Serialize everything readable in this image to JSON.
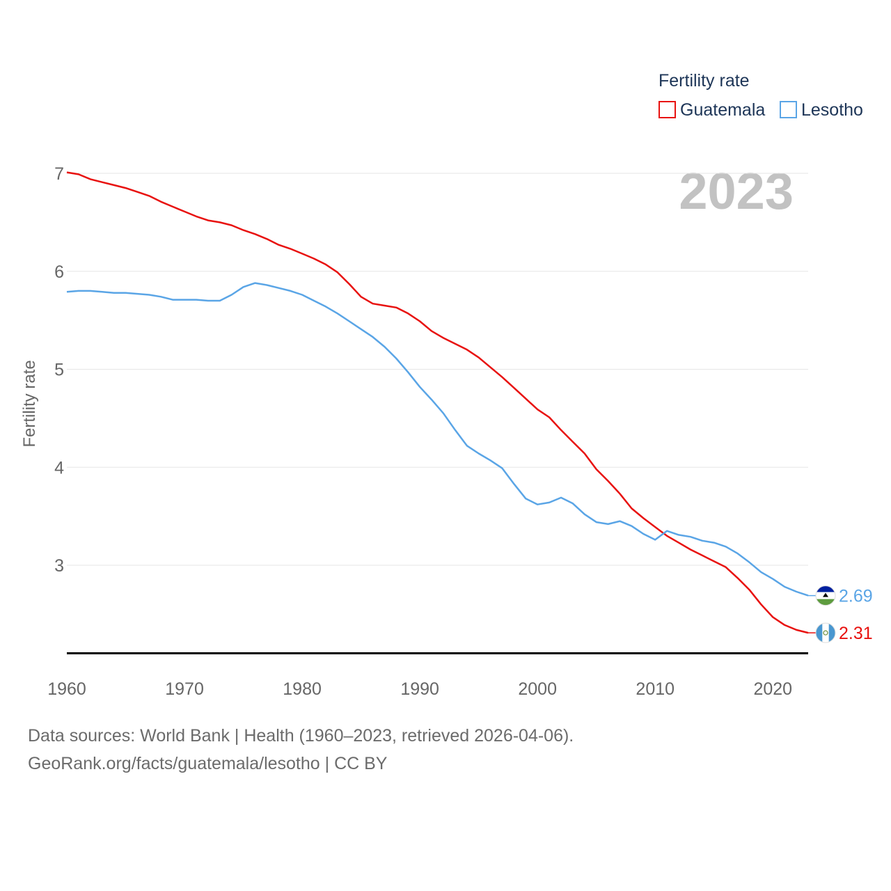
{
  "chart_data": {
    "type": "line",
    "title": "",
    "xlabel": "",
    "ylabel": "Fertility rate",
    "xlim": [
      1960,
      2023
    ],
    "ylim": [
      2.1,
      7.2
    ],
    "year_label": "2023",
    "x_ticks": [
      1960,
      1970,
      1980,
      1990,
      2000,
      2010,
      2020
    ],
    "y_ticks": [
      3,
      4,
      5,
      6,
      7
    ],
    "legend": {
      "title": "Fertility rate",
      "position": "top-right"
    },
    "x": [
      1960,
      1961,
      1962,
      1963,
      1964,
      1965,
      1966,
      1967,
      1968,
      1969,
      1970,
      1971,
      1972,
      1973,
      1974,
      1975,
      1976,
      1977,
      1978,
      1979,
      1980,
      1981,
      1982,
      1983,
      1984,
      1985,
      1986,
      1987,
      1988,
      1989,
      1990,
      1991,
      1992,
      1993,
      1994,
      1995,
      1996,
      1997,
      1998,
      1999,
      2000,
      2001,
      2002,
      2003,
      2004,
      2005,
      2006,
      2007,
      2008,
      2009,
      2010,
      2011,
      2012,
      2013,
      2014,
      2015,
      2016,
      2017,
      2018,
      2019,
      2020,
      2021,
      2022,
      2023
    ],
    "series": [
      {
        "name": "Guatemala",
        "color": "#e8110f",
        "end_label": "2.31",
        "flag": "guatemala-flag",
        "values": [
          7.01,
          6.99,
          6.94,
          6.91,
          6.88,
          6.85,
          6.81,
          6.77,
          6.71,
          6.66,
          6.61,
          6.56,
          6.52,
          6.5,
          6.47,
          6.42,
          6.38,
          6.33,
          6.27,
          6.23,
          6.18,
          6.13,
          6.07,
          5.99,
          5.87,
          5.74,
          5.67,
          5.65,
          5.63,
          5.57,
          5.49,
          5.39,
          5.32,
          5.26,
          5.2,
          5.12,
          5.02,
          4.92,
          4.81,
          4.7,
          4.59,
          4.51,
          4.38,
          4.26,
          4.14,
          3.98,
          3.86,
          3.73,
          3.58,
          3.48,
          3.39,
          3.3,
          3.23,
          3.16,
          3.1,
          3.04,
          2.98,
          2.87,
          2.75,
          2.6,
          2.47,
          2.39,
          2.34,
          2.31
        ]
      },
      {
        "name": "Lesotho",
        "color": "#5aa5e6",
        "end_label": "2.69",
        "flag": "lesotho-flag",
        "values": [
          5.79,
          5.8,
          5.8,
          5.79,
          5.78,
          5.78,
          5.77,
          5.76,
          5.74,
          5.71,
          5.71,
          5.71,
          5.7,
          5.7,
          5.76,
          5.84,
          5.88,
          5.86,
          5.83,
          5.8,
          5.76,
          5.7,
          5.64,
          5.57,
          5.49,
          5.41,
          5.33,
          5.23,
          5.11,
          4.97,
          4.82,
          4.69,
          4.55,
          4.38,
          4.22,
          4.14,
          4.07,
          3.99,
          3.83,
          3.68,
          3.62,
          3.64,
          3.69,
          3.63,
          3.52,
          3.44,
          3.42,
          3.45,
          3.4,
          3.32,
          3.26,
          3.35,
          3.31,
          3.29,
          3.25,
          3.23,
          3.19,
          3.12,
          3.03,
          2.93,
          2.86,
          2.78,
          2.73,
          2.69
        ]
      }
    ]
  },
  "footer": {
    "sources": "Data sources: World Bank | Health (1960–2023, retrieved 2026-04-06).",
    "credit": "GeoRank.org/facts/guatemala/lesotho | CC BY"
  }
}
